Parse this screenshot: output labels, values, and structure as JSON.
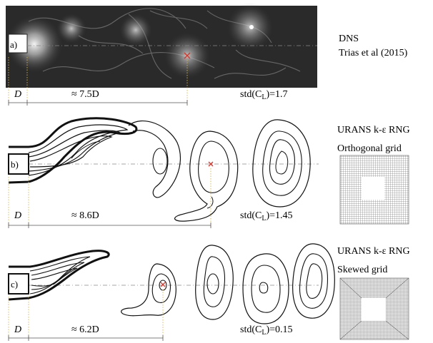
{
  "panels": [
    {
      "id": "a",
      "letter": "a)",
      "title_lines": [
        "DNS",
        "Trias et al (2015)"
      ],
      "d_label": "D",
      "distance_label": "≈ 7.5D",
      "std_label": "std(C",
      "std_sub": "L",
      "std_value": ")=1.7"
    },
    {
      "id": "b",
      "letter": "b)",
      "title_lines": [
        "URANS k-ε RNG",
        "Orthogonal grid"
      ],
      "d_label": "D",
      "distance_label": "≈ 8.6D",
      "std_label": "std(C",
      "std_sub": "L",
      "std_value": ")=1.45"
    },
    {
      "id": "c",
      "letter": "c)",
      "title_lines": [
        "URANS k-ε RNG",
        "Skewed grid"
      ],
      "d_label": "D",
      "distance_label": "≈ 6.2D",
      "std_label": "std(C",
      "std_sub": "L",
      "std_value": ")=0.15"
    }
  ],
  "colors": {
    "marker": "#d9362b",
    "contour": "#111111",
    "grid": "#444444"
  }
}
